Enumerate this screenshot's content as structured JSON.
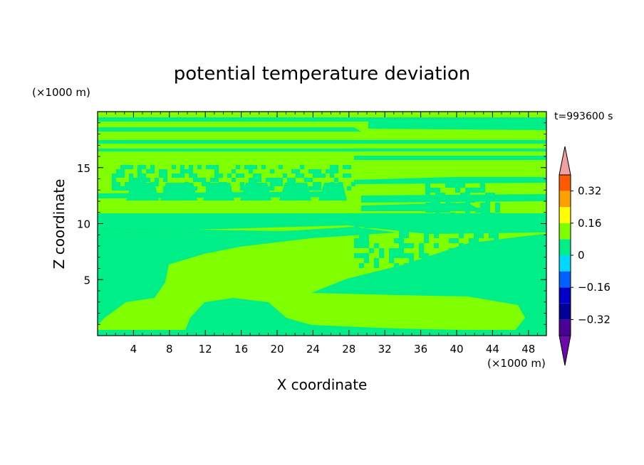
{
  "chart_data": {
    "type": "heatmap",
    "title": "potential temperature deviation",
    "xlabel": "X coordinate",
    "ylabel": "Z coordinate",
    "x_unit": "(×1000 m)",
    "y_unit": "(×1000 m)",
    "time_label": "t=993600 s",
    "xlim": [
      0,
      50
    ],
    "ylim": [
      0,
      20
    ],
    "x_ticks": [
      4,
      8,
      12,
      16,
      20,
      24,
      28,
      32,
      36,
      40,
      44,
      48
    ],
    "y_ticks": [
      5,
      10,
      15
    ],
    "colorbar": {
      "levels": [
        -0.4,
        -0.32,
        -0.24,
        -0.16,
        -0.08,
        0,
        0.08,
        0.16,
        0.24,
        0.32,
        0.4
      ],
      "tick_labels": [
        "0.32",
        "0.16",
        "0",
        "−0.16",
        "−0.32"
      ],
      "tick_values": [
        0.32,
        0.16,
        0,
        -0.16,
        -0.32
      ],
      "colors_low_to_high": [
        "#4b0096",
        "#000096",
        "#0000c8",
        "#0060ff",
        "#00d8ff",
        "#00ee88",
        "#80ff00",
        "#ffff00",
        "#ffa000",
        "#ff5a00",
        "#ff0000"
      ],
      "under_color": "#6a0aa8",
      "over_color": "#f0a0a0"
    },
    "dominant_colors": {
      "positive_small": "#80ff00",
      "negative_small": "#00ee88"
    }
  }
}
